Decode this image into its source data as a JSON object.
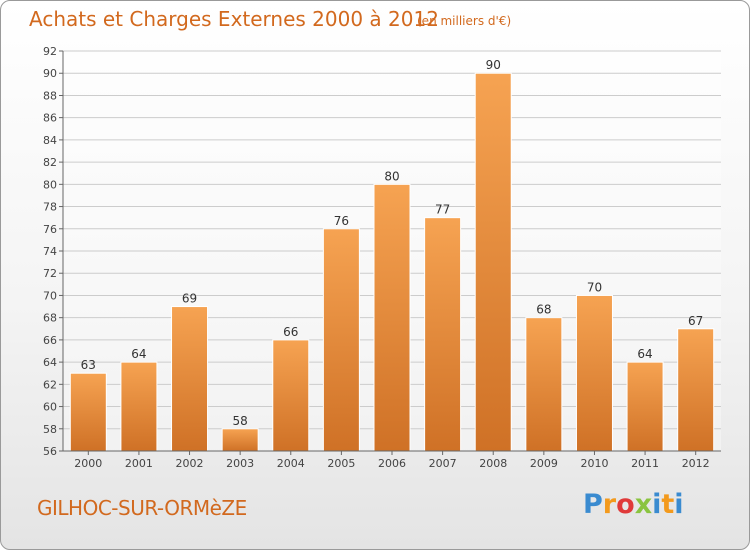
{
  "header": {
    "title": "Achats et Charges Externes 2000 à 2012",
    "unit": "(en milliers d'€)"
  },
  "footer": {
    "commune": "GILHOC-SUR-ORMèZE",
    "brand": "Proxiti"
  },
  "colors": {
    "accent": "#d2691e",
    "bar_light": "#f6a352",
    "bar_dark": "#cf7126"
  },
  "chart_data": {
    "type": "bar",
    "title": "Achats et Charges Externes 2000 à 2012",
    "subtitle": "(en milliers d'€)",
    "categories": [
      "2000",
      "2001",
      "2002",
      "2003",
      "2004",
      "2005",
      "2006",
      "2007",
      "2008",
      "2009",
      "2010",
      "2011",
      "2012"
    ],
    "values": [
      63,
      64,
      69,
      58,
      66,
      76,
      80,
      77,
      90,
      68,
      70,
      64,
      67
    ],
    "ylim": [
      56,
      92
    ],
    "yticks": [
      56,
      58,
      60,
      62,
      64,
      66,
      68,
      70,
      72,
      74,
      76,
      78,
      80,
      82,
      84,
      86,
      88,
      90,
      92
    ],
    "grid": true,
    "data_labels": true
  }
}
